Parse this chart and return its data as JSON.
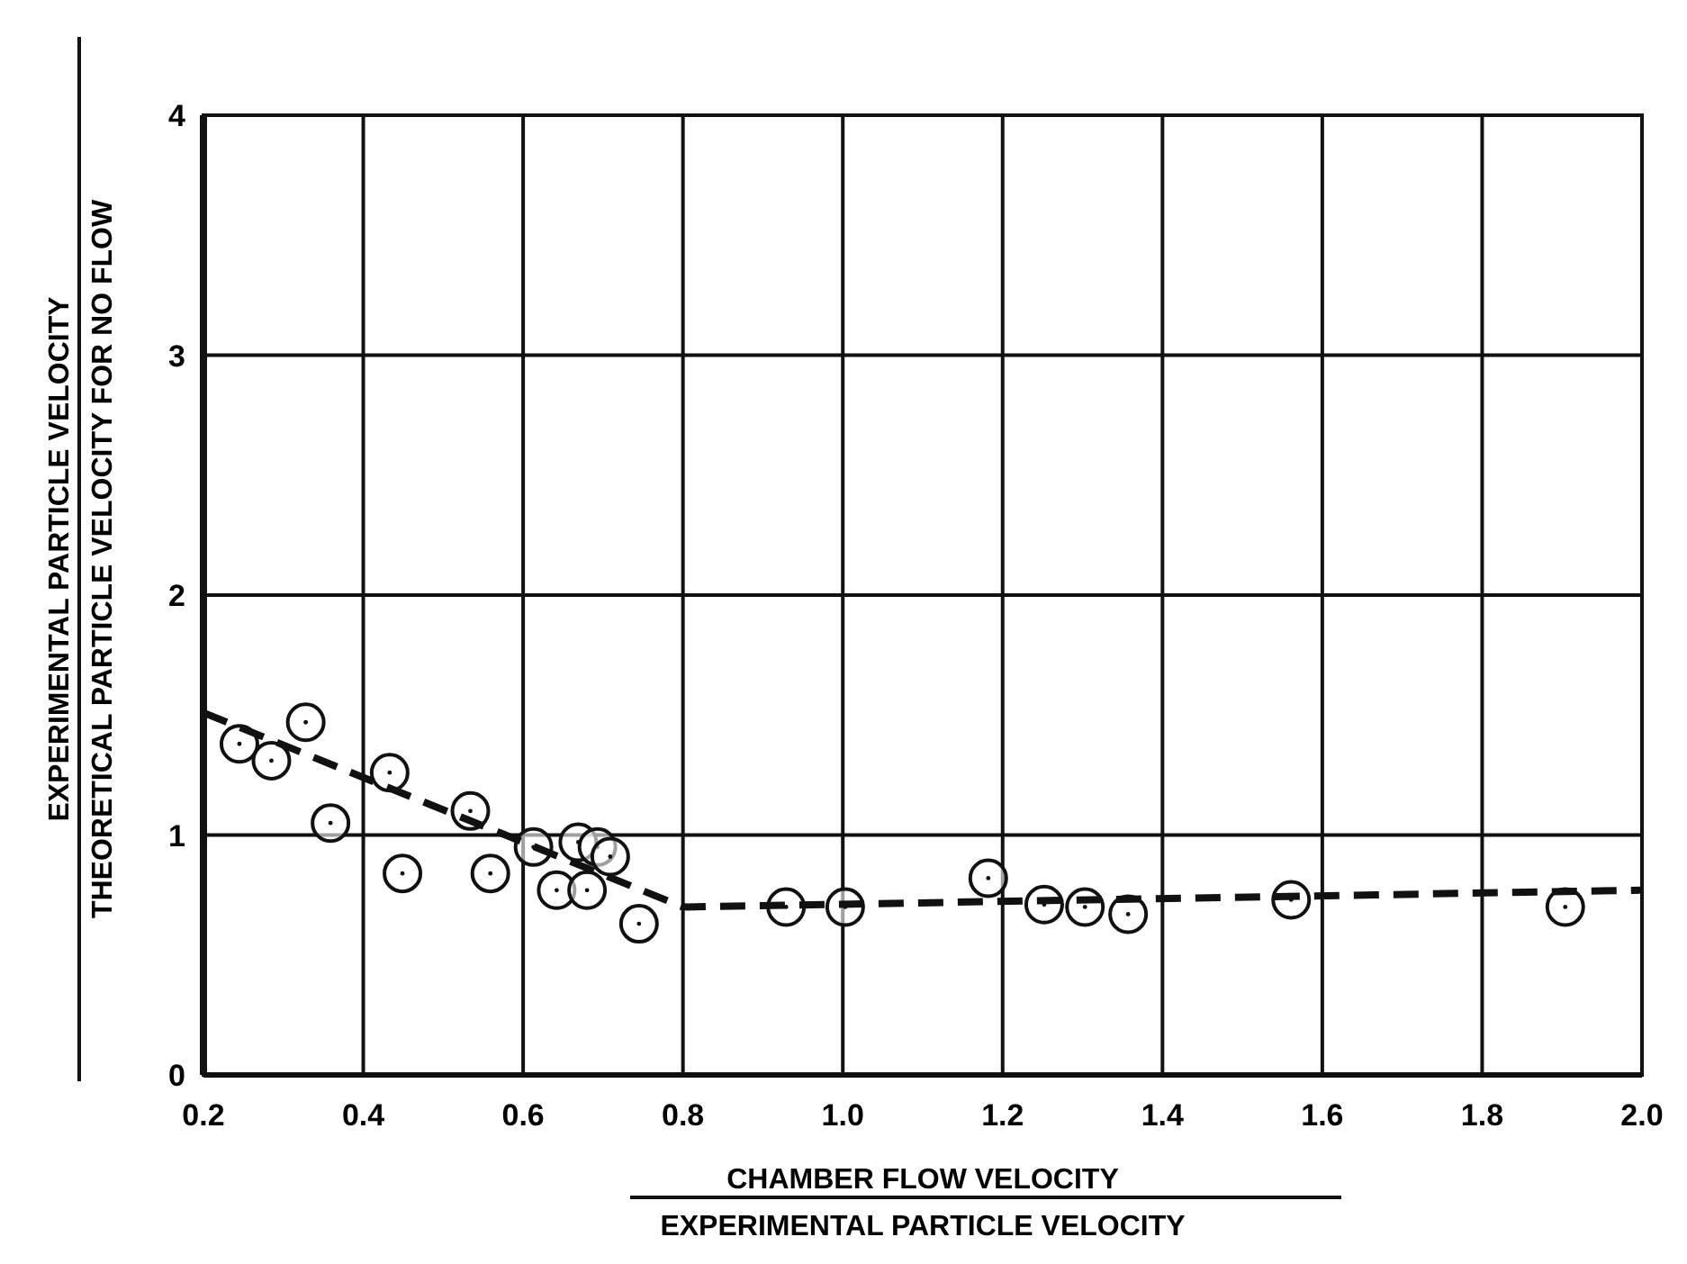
{
  "chart_data": {
    "type": "scatter",
    "xlabel": "CHAMBER FLOW VELOCITY\nEXPERIMENTAL PARTICLE VELOCITY",
    "ylabel": "EXPERIMENTAL PARTICLE VELOCITY\nTHEORETICAL PARTICLE VELOCITY FOR NO FLOW",
    "xlim": [
      0.2,
      2.0
    ],
    "ylim": [
      0,
      4
    ],
    "xticks": [
      {
        "value": 0.2,
        "label": "0.2"
      },
      {
        "value": 0.4,
        "label": "0.4"
      },
      {
        "value": 0.6,
        "label": "0.6"
      },
      {
        "value": 0.8,
        "label": "0.8"
      },
      {
        "value": 1.0,
        "label": "1.0"
      },
      {
        "value": 1.2,
        "label": "1.2"
      },
      {
        "value": 1.4,
        "label": "1.4"
      },
      {
        "value": 1.6,
        "label": "1.6"
      },
      {
        "value": 1.8,
        "label": "1.8"
      },
      {
        "value": 2.0,
        "label": "2.0"
      }
    ],
    "yticks": [
      0,
      1,
      2,
      3,
      4
    ],
    "grid": true,
    "series": [
      {
        "color": "#111111",
        "marker": "circle",
        "x": [
          0.245,
          0.285,
          0.328,
          0.359,
          0.433,
          0.449,
          0.534,
          0.559,
          0.613,
          0.642,
          0.669,
          0.68,
          0.693,
          0.709,
          0.745,
          0.929,
          1.003,
          1.182,
          1.252,
          1.303,
          1.357,
          1.561,
          1.904
        ],
        "values": [
          1.38,
          1.31,
          1.47,
          1.05,
          1.26,
          0.84,
          1.1,
          0.84,
          0.95,
          0.77,
          0.97,
          0.77,
          0.95,
          0.91,
          0.63,
          0.7,
          0.7,
          0.82,
          0.71,
          0.7,
          0.67,
          0.73,
          0.7
        ]
      },
      {
        "type": "line",
        "color": "#111111",
        "marker": "none",
        "line_style": "dashed",
        "x": [
          0.2,
          0.8,
          2.0
        ],
        "values": [
          1.51,
          0.7,
          0.77
        ]
      }
    ]
  }
}
